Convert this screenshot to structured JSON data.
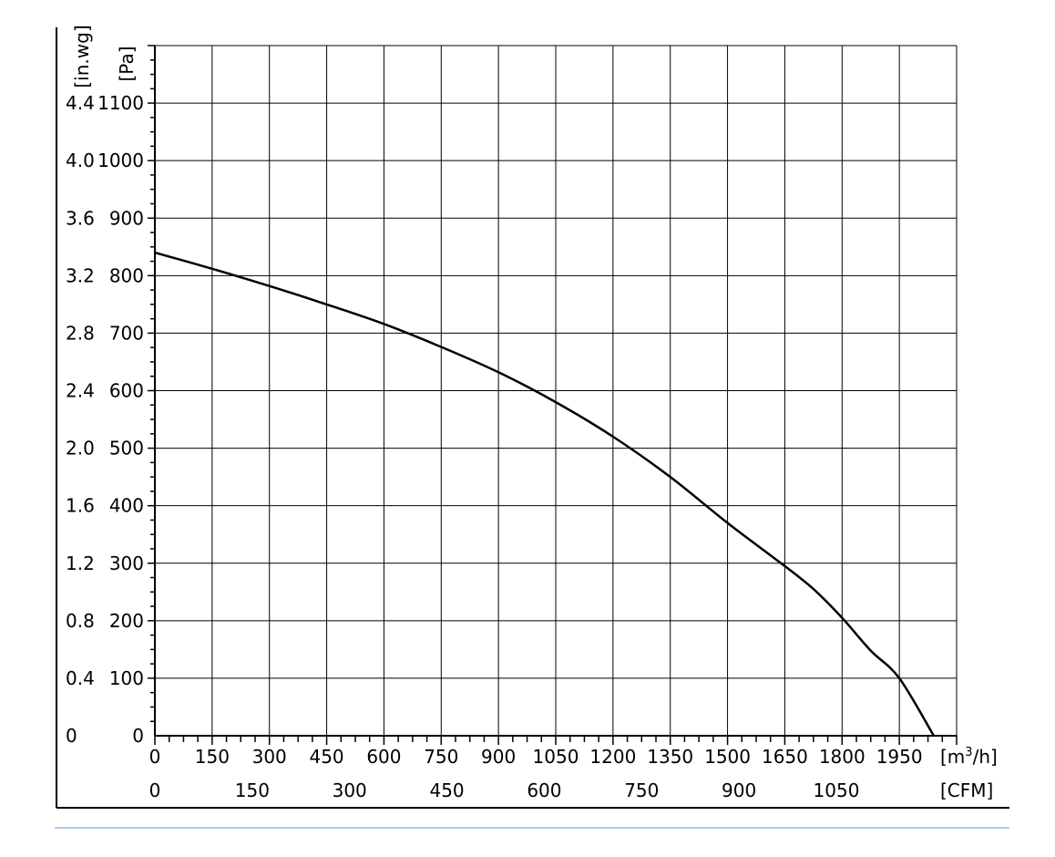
{
  "chart_data": {
    "type": "line",
    "title": "",
    "x_axis_primary": {
      "unit_label_prefix": "[m",
      "unit_label_sup": "3",
      "unit_label_suffix": "/h]",
      "range": [
        0,
        2100
      ],
      "ticks": [
        0,
        150,
        300,
        450,
        600,
        750,
        900,
        1050,
        1200,
        1350,
        1500,
        1650,
        1800,
        1950
      ],
      "tick_labels": [
        "0",
        "150",
        "300",
        "450",
        "600",
        "750",
        "900",
        "1050",
        "1200",
        "1350",
        "1500",
        "1650",
        "1800",
        "1950"
      ]
    },
    "x_axis_secondary": {
      "unit_label": "[CFM]",
      "ticks": [
        0,
        150,
        300,
        450,
        600,
        750,
        900,
        1050
      ],
      "tick_labels": [
        "0",
        "150",
        "300",
        "450",
        "600",
        "750",
        "900",
        "1050"
      ]
    },
    "y_axis_primary": {
      "unit_label": "[Pa]",
      "range": [
        0,
        1100
      ],
      "ticks": [
        0,
        100,
        200,
        300,
        400,
        500,
        600,
        700,
        800,
        900,
        1000,
        1100
      ],
      "tick_labels": [
        "0",
        "100",
        "200",
        "300",
        "400",
        "500",
        "600",
        "700",
        "800",
        "900",
        "1000",
        "1100"
      ]
    },
    "y_axis_secondary": {
      "unit_label": "[in.wg]",
      "tick_labels": [
        "0",
        "0.4",
        "0.8",
        "1.2",
        "1.6",
        "2.0",
        "2.4",
        "2.8",
        "3.2",
        "3.6",
        "4.0",
        "4.4"
      ]
    },
    "grid": true,
    "series": [
      {
        "x": [
          0,
          150,
          300,
          450,
          600,
          750,
          900,
          1050,
          1200,
          1350,
          1500,
          1650,
          1725,
          1800,
          1875,
          1950,
          2040
        ],
        "y": [
          840,
          812,
          782,
          750,
          716,
          676,
          632,
          580,
          520,
          450,
          370,
          295,
          255,
          205,
          148,
          100,
          0
        ]
      }
    ]
  }
}
